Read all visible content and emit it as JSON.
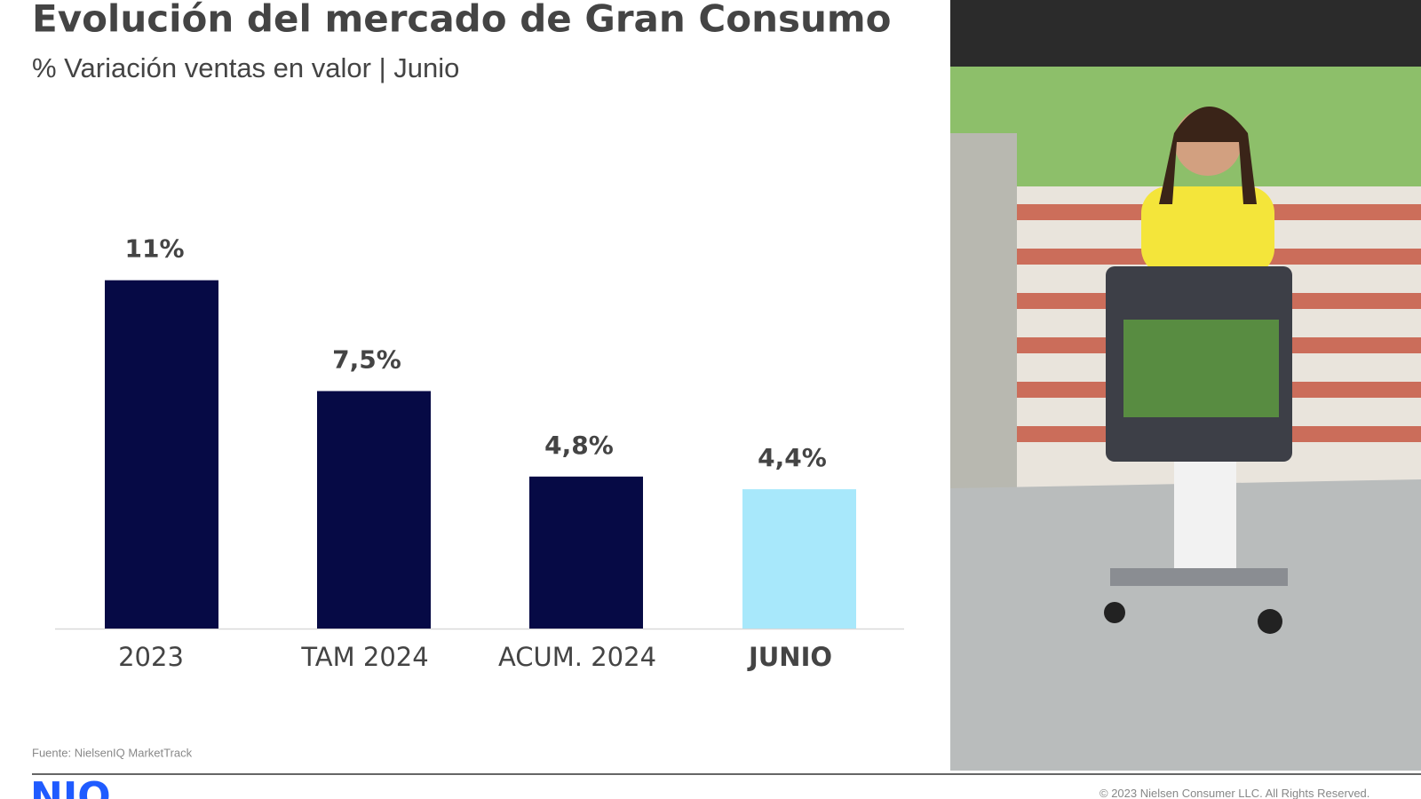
{
  "chart_data": {
    "type": "bar",
    "title": "Evolución del mercado de Gran Consumo",
    "subtitle": "% Variación ventas en valor | Junio",
    "categories": [
      "2023",
      "TAM 2024",
      "ACUM. 2024",
      "JUNIO"
    ],
    "values": [
      11,
      7.5,
      4.8,
      4.4
    ],
    "value_labels": [
      "11%",
      "7,5%",
      "4,8%",
      "4,4%"
    ],
    "colors": [
      "#060a45",
      "#060a45",
      "#060a45",
      "#a8e8fb"
    ],
    "ylim": [
      0,
      12
    ],
    "source": "Fuente: NielsenIQ MarketTrack"
  },
  "footer": {
    "logo": "NIQ",
    "copyright": "© 2023 Nielsen Consumer LLC. All Rights Reserved."
  }
}
